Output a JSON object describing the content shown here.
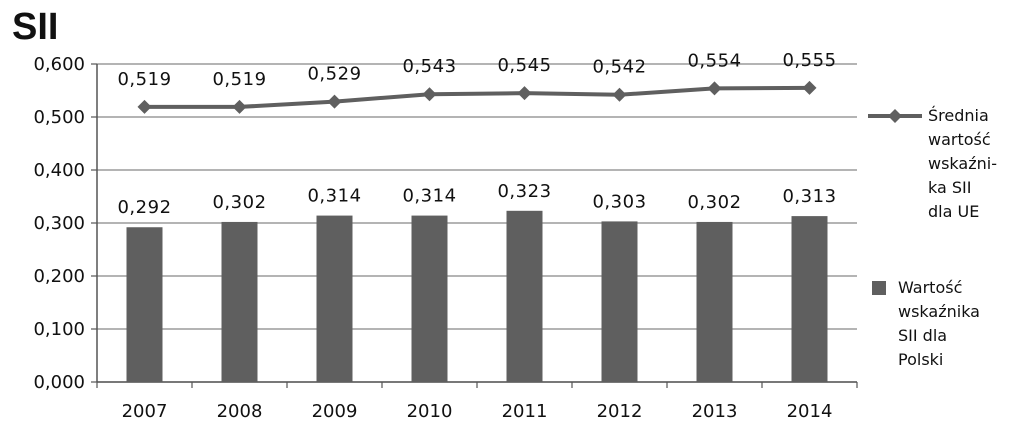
{
  "chart_data": {
    "type": "bar",
    "title": "SII",
    "categories": [
      "2007",
      "2008",
      "2009",
      "2010",
      "2011",
      "2012",
      "2013",
      "2014"
    ],
    "series": [
      {
        "name": "Wartość wskaźnika SII dla Polski",
        "type": "bar",
        "values": [
          0.292,
          0.302,
          0.314,
          0.314,
          0.323,
          0.303,
          0.302,
          0.313
        ],
        "labels": [
          "0,292",
          "0,302",
          "0,314",
          "0,314",
          "0,323",
          "0,303",
          "0,302",
          "0,313"
        ],
        "color": "#5f5f5f"
      },
      {
        "name": "Średnia wartość wskaźni-ka SII dla UE",
        "type": "line",
        "values": [
          0.519,
          0.519,
          0.529,
          0.543,
          0.545,
          0.542,
          0.554,
          0.555
        ],
        "labels": [
          "0,519",
          "0,519",
          "0,529",
          "0,543",
          "0,545",
          "0,542",
          "0,554",
          "0,555"
        ],
        "color": "#5f5f5f",
        "marker": "diamond"
      }
    ],
    "ylim": [
      0,
      0.6
    ],
    "yticks": [
      "0,000",
      "0,100",
      "0,200",
      "0,300",
      "0,400",
      "0,500",
      "0,600"
    ],
    "grid": true,
    "legend_position": "right",
    "xlabel": "",
    "ylabel": ""
  },
  "legend": {
    "line_label": "Średnia\nwartość\nwskaźni-\nka SII\ndla UE",
    "bar_label": "Wartość\nwskaźnika\nSII dla\nPolski"
  }
}
